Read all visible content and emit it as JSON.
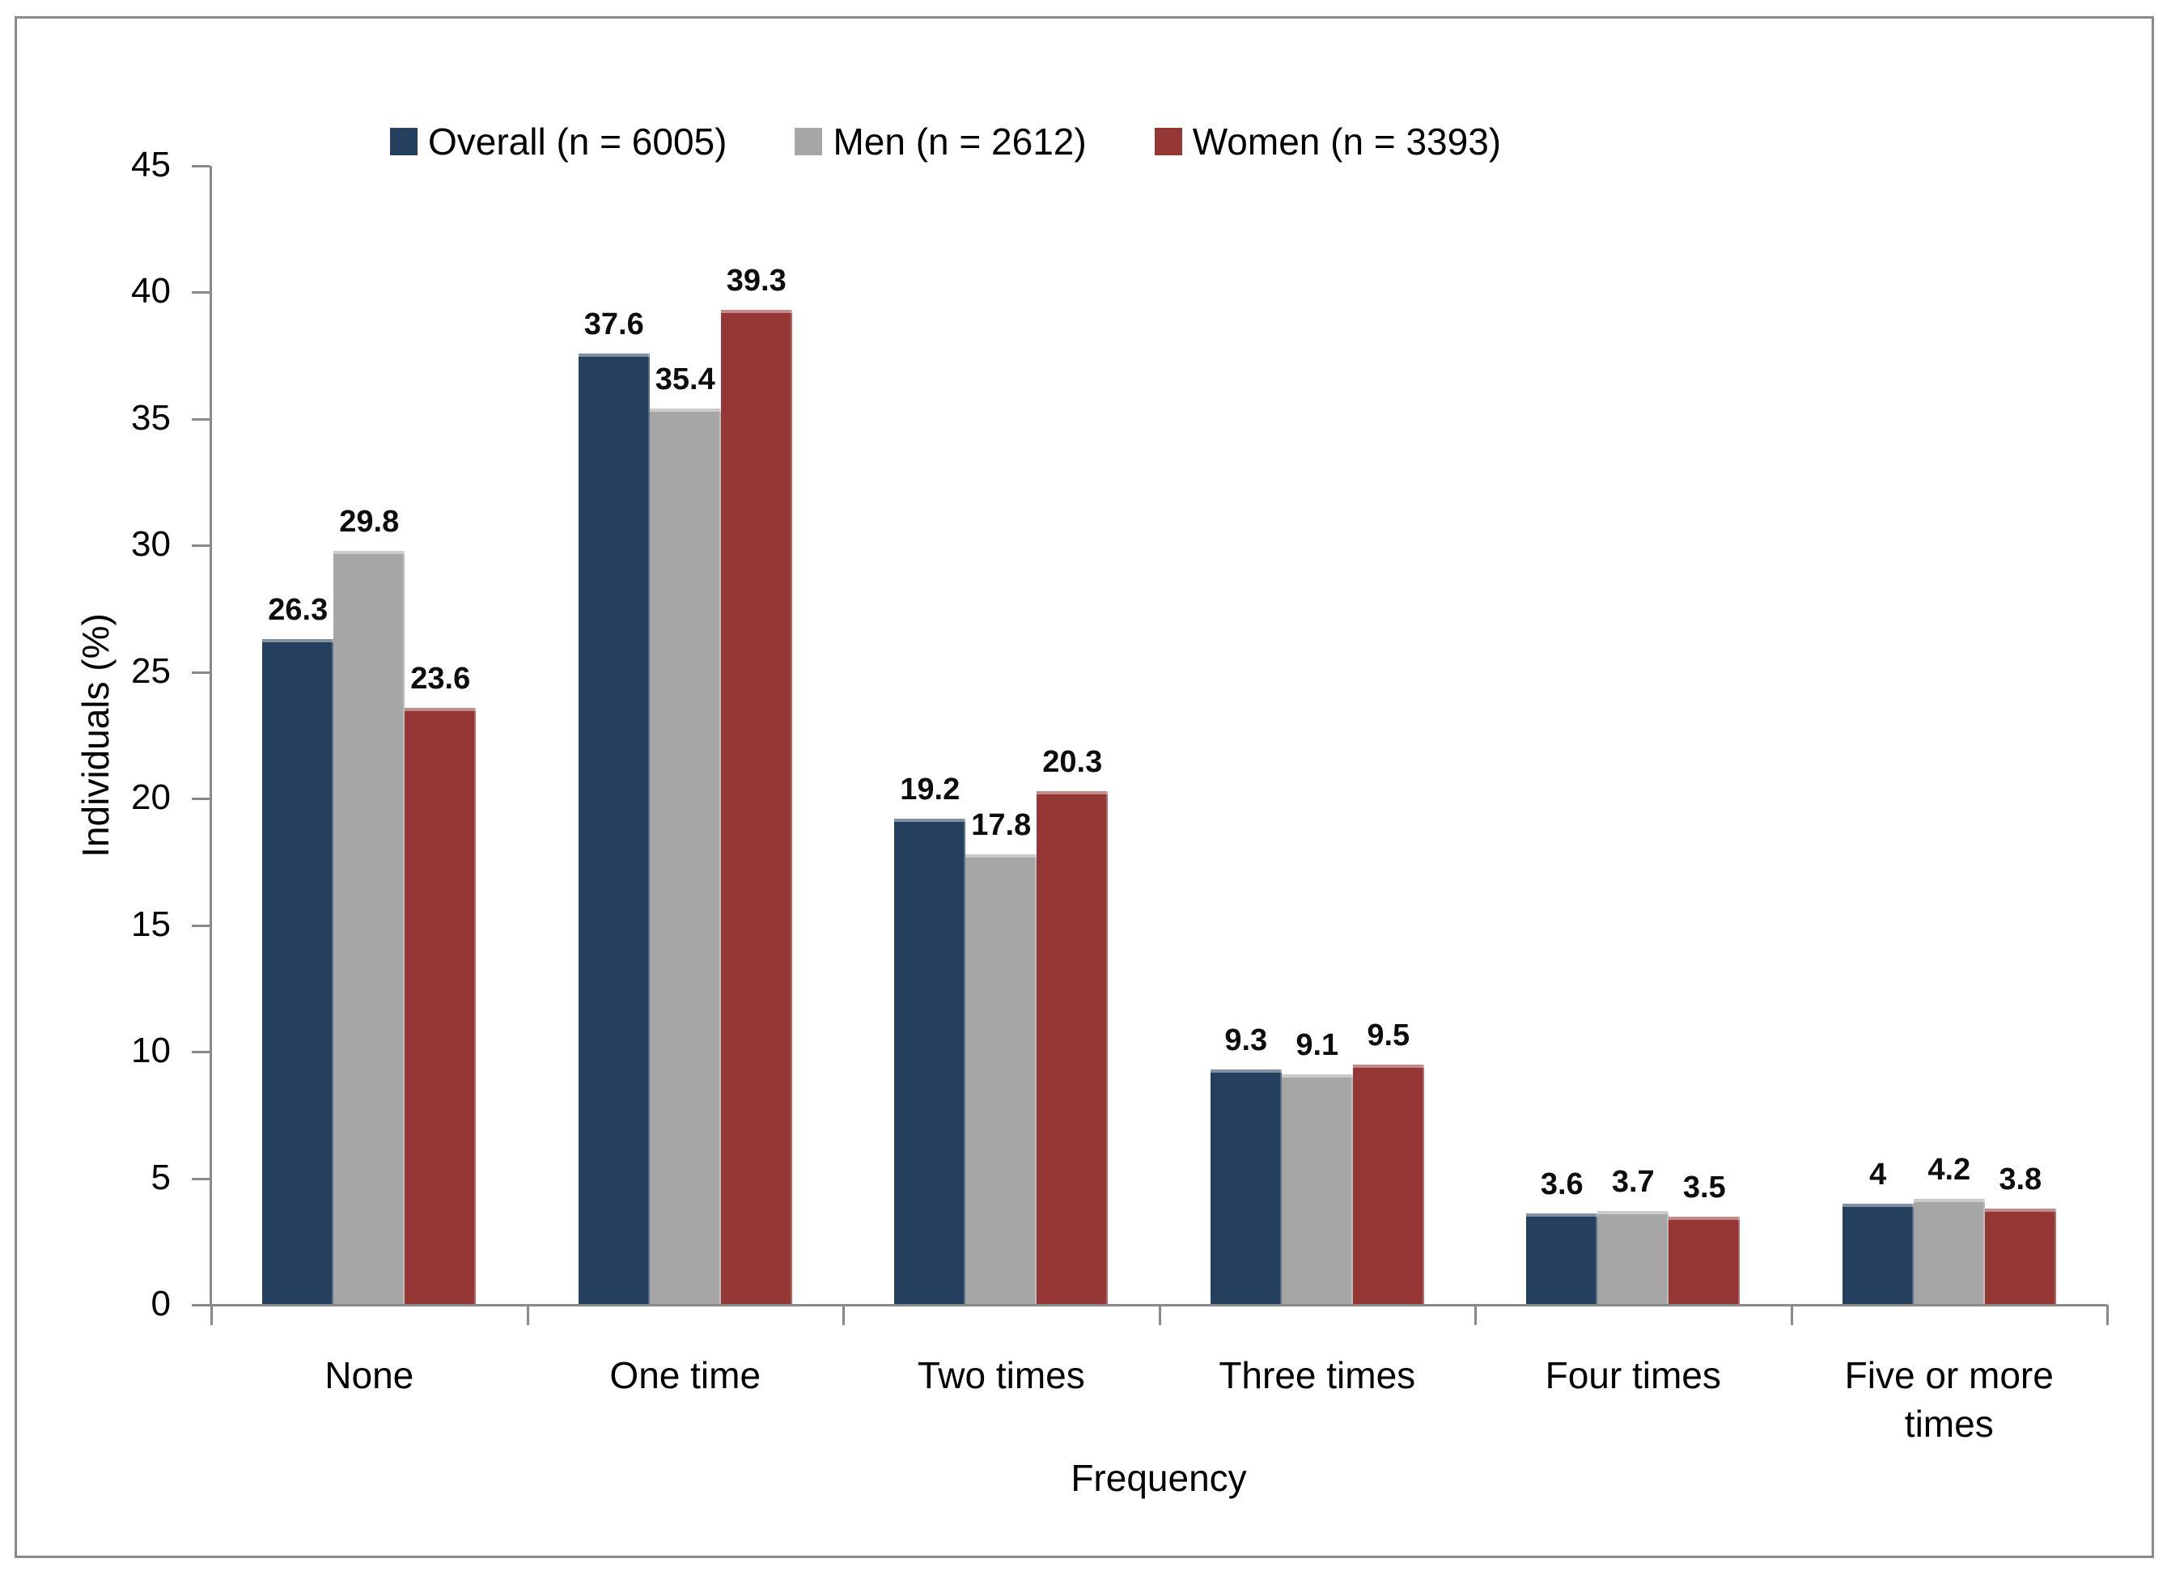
{
  "chart_data": {
    "type": "bar",
    "title": "",
    "xlabel": "Frequency",
    "ylabel": "Individuals (%)",
    "ylim": [
      0,
      45
    ],
    "ytick_step": 5,
    "grid": false,
    "legend_position": "top",
    "data_labels": true,
    "axis_color": "#898989",
    "categories": [
      "None",
      "One time",
      "Two times",
      "Three times",
      "Four times",
      "Five or more times"
    ],
    "series": [
      {
        "name": "Overall (n = 6005)",
        "color": "#24405E",
        "values": [
          26.3,
          37.6,
          19.2,
          9.3,
          3.6,
          4
        ]
      },
      {
        "name": "Men (n = 2612)",
        "color": "#A6A6A6",
        "values": [
          29.8,
          35.4,
          17.8,
          9.1,
          3.7,
          4.2
        ]
      },
      {
        "name": "Women (n = 3393)",
        "color": "#953735",
        "values": [
          23.6,
          39.3,
          20.3,
          9.5,
          3.5,
          3.8
        ]
      }
    ]
  }
}
